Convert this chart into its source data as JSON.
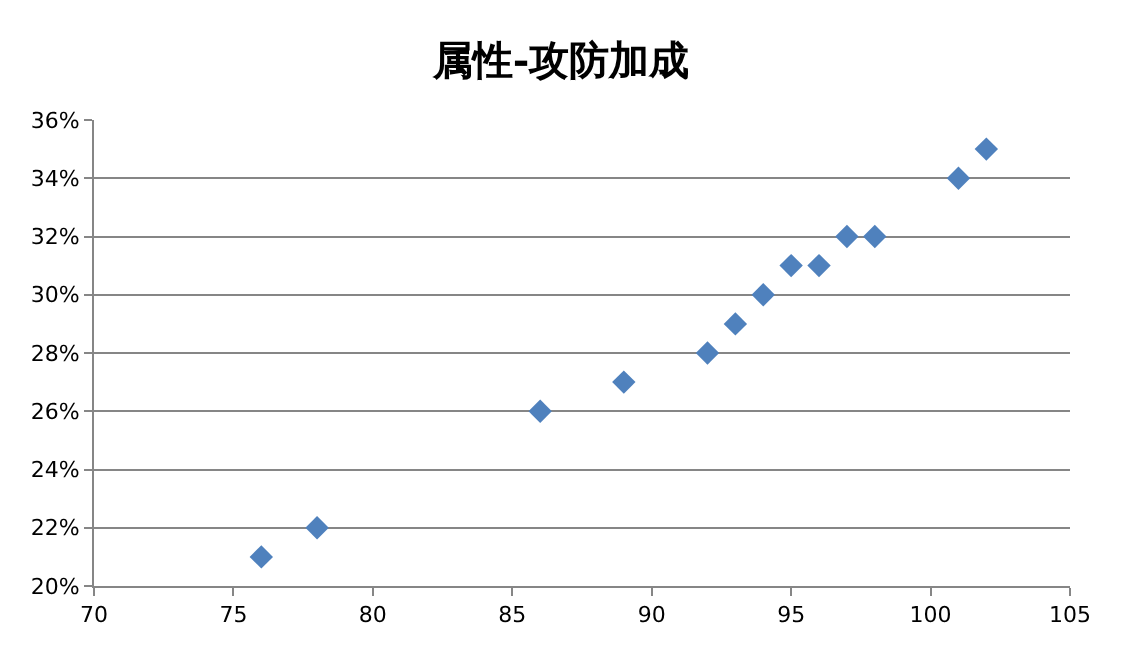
{
  "chart_data": {
    "type": "scatter",
    "title": "属性-攻防加成",
    "x": [
      76,
      78,
      86,
      89,
      92,
      93,
      94,
      95,
      96,
      97,
      98,
      101,
      102
    ],
    "series": [
      {
        "color": "#4f81bd",
        "values": [
          21,
          22,
          26,
          27,
          28,
          29,
          30,
          31,
          31,
          32,
          32,
          34,
          35
        ]
      }
    ],
    "xlim": [
      70,
      105
    ],
    "xticks": [
      70,
      75,
      80,
      85,
      90,
      95,
      100,
      105
    ],
    "ylim": [
      20,
      36
    ],
    "yticks": [
      {
        "value": 20,
        "label": "20%"
      },
      {
        "value": 22,
        "label": "22%"
      },
      {
        "value": 24,
        "label": "24%"
      },
      {
        "value": 26,
        "label": "26%"
      },
      {
        "value": 28,
        "label": "28%"
      },
      {
        "value": 30,
        "label": "30%"
      },
      {
        "value": 32,
        "label": "32%"
      },
      {
        "value": 34,
        "label": "34%"
      },
      {
        "value": 36,
        "label": "36%"
      }
    ],
    "grid": "y",
    "marker": "diamond"
  }
}
